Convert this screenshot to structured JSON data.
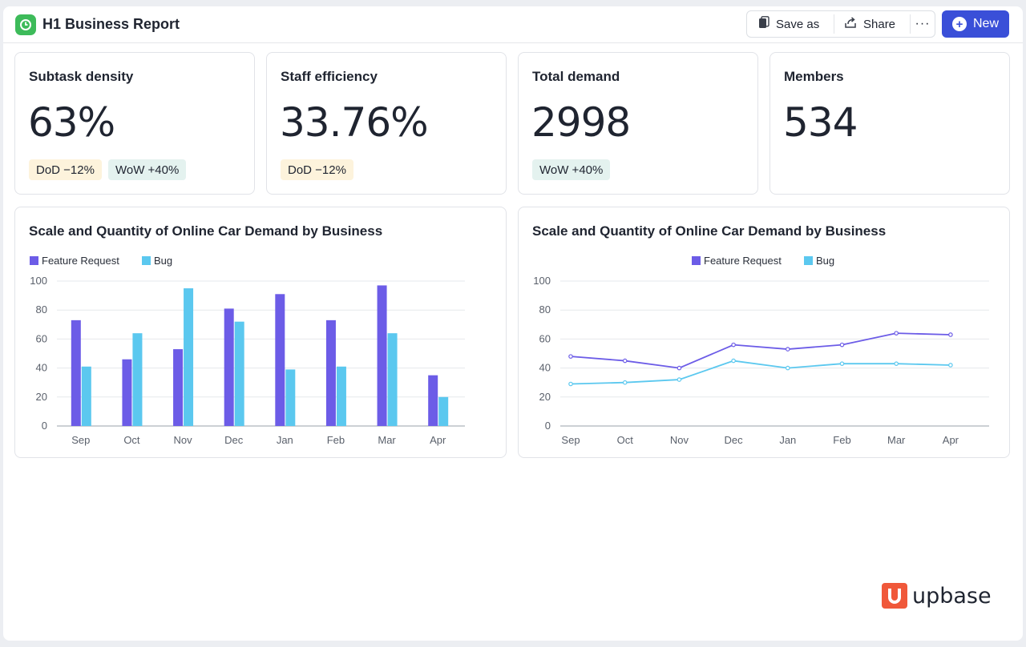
{
  "header": {
    "title": "H1 Business Report",
    "save_as_label": "Save as",
    "share_label": "Share",
    "more_label": "···",
    "new_label": "New"
  },
  "kpis": [
    {
      "label": "Subtask density",
      "value": "63%",
      "badges": [
        {
          "type": "dod",
          "text": "DoD −12%"
        },
        {
          "type": "wow",
          "text": "WoW +40%"
        }
      ]
    },
    {
      "label": "Staff efficiency",
      "value": "33.76%",
      "badges": [
        {
          "type": "dod",
          "text": "DoD −12%"
        }
      ]
    },
    {
      "label": "Total demand",
      "value": "2998",
      "badges": [
        {
          "type": "wow",
          "text": "WoW +40%"
        }
      ]
    },
    {
      "label": "Members",
      "value": "534",
      "badges": []
    }
  ],
  "colors": {
    "feature_request": "#6c5ce7",
    "bug": "#5bc8ef",
    "accent": "#3a4fd8",
    "app_icon": "#3dbb5a",
    "logo": "#f0583a"
  },
  "chart_data": [
    {
      "type": "bar",
      "title": "Scale and Quantity of Online Car Demand by Business",
      "categories": [
        "Sep",
        "Oct",
        "Nov",
        "Dec",
        "Jan",
        "Feb",
        "Mar",
        "Apr"
      ],
      "series": [
        {
          "name": "Feature Request",
          "values": [
            73,
            46,
            53,
            81,
            91,
            73,
            97,
            35
          ]
        },
        {
          "name": "Bug",
          "values": [
            41,
            64,
            95,
            72,
            39,
            41,
            64,
            20
          ]
        }
      ],
      "ylim": [
        0,
        100
      ],
      "yticks": [
        0,
        20,
        40,
        60,
        80,
        100
      ],
      "legend_position": "top-left",
      "grid": true
    },
    {
      "type": "line",
      "title": "Scale and Quantity of Online Car Demand by Business",
      "categories": [
        "Sep",
        "Oct",
        "Nov",
        "Dec",
        "Jan",
        "Feb",
        "Mar",
        "Apr"
      ],
      "series": [
        {
          "name": "Feature Request",
          "values": [
            48,
            45,
            40,
            56,
            53,
            56,
            64,
            63
          ]
        },
        {
          "name": "Bug",
          "values": [
            29,
            30,
            32,
            45,
            40,
            43,
            43,
            42
          ]
        }
      ],
      "ylim": [
        0,
        100
      ],
      "yticks": [
        0,
        20,
        40,
        60,
        80,
        100
      ],
      "legend_position": "top-center",
      "grid": true
    }
  ],
  "logo": {
    "text": "upbase"
  }
}
